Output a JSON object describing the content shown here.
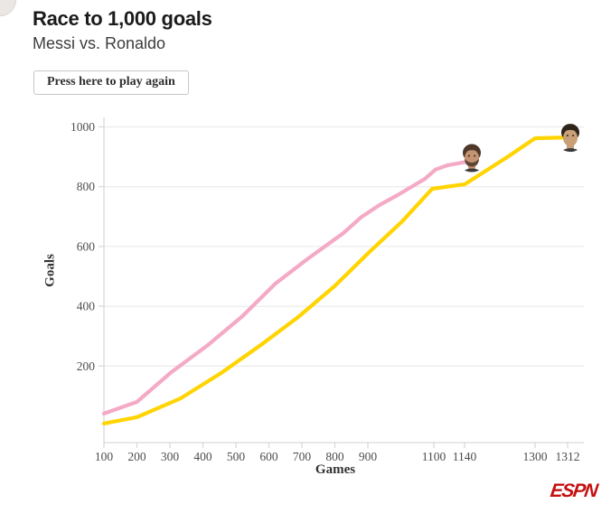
{
  "header": {
    "title": "Race to 1,000 goals",
    "subtitle": "Messi vs. Ronaldo",
    "play_again_label": "Press here to play again"
  },
  "branding": {
    "logo_text": "ESPN",
    "logo_color": "#c41111"
  },
  "chart_data": {
    "type": "line",
    "title": "Race to 1,000 goals",
    "xlabel": "Games",
    "ylabel": "Goals",
    "x_ticks": [
      100,
      200,
      300,
      400,
      500,
      600,
      700,
      800,
      900,
      1100,
      1140,
      1300,
      1312
    ],
    "y_ticks": [
      200,
      400,
      600,
      800,
      1000
    ],
    "xlim": [
      100,
      1312
    ],
    "ylim": [
      0,
      1030
    ],
    "grid": true,
    "legend": "none",
    "colors": {
      "grid": "#ececec",
      "axis": "#d9d9d9",
      "tick_text": "#4d4d4d"
    },
    "series": [
      {
        "name": "Messi",
        "color": "#f4aac6",
        "end_label": {
          "games": 1140,
          "goals": 882
        },
        "points": [
          [
            100,
            41
          ],
          [
            200,
            80
          ],
          [
            305,
            180
          ],
          [
            415,
            270
          ],
          [
            520,
            367
          ],
          [
            620,
            476
          ],
          [
            716,
            557
          ],
          [
            826,
            645
          ],
          [
            881,
            699
          ],
          [
            936,
            739
          ],
          [
            990,
            772
          ],
          [
            1073,
            826
          ],
          [
            1102,
            857
          ],
          [
            1118,
            872
          ],
          [
            1140,
            882
          ]
        ]
      },
      {
        "name": "Ronaldo",
        "color": "#ffd400",
        "end_label": {
          "games": 1312,
          "goals": 965
        },
        "points": [
          [
            100,
            8
          ],
          [
            200,
            29
          ],
          [
            333,
            92
          ],
          [
            456,
            177
          ],
          [
            579,
            273
          ],
          [
            689,
            364
          ],
          [
            799,
            467
          ],
          [
            908,
            585
          ],
          [
            1004,
            684
          ],
          [
            1095,
            793
          ],
          [
            1140,
            808
          ],
          [
            1234,
            896
          ],
          [
            1300,
            962
          ],
          [
            1312,
            965
          ]
        ]
      }
    ]
  }
}
